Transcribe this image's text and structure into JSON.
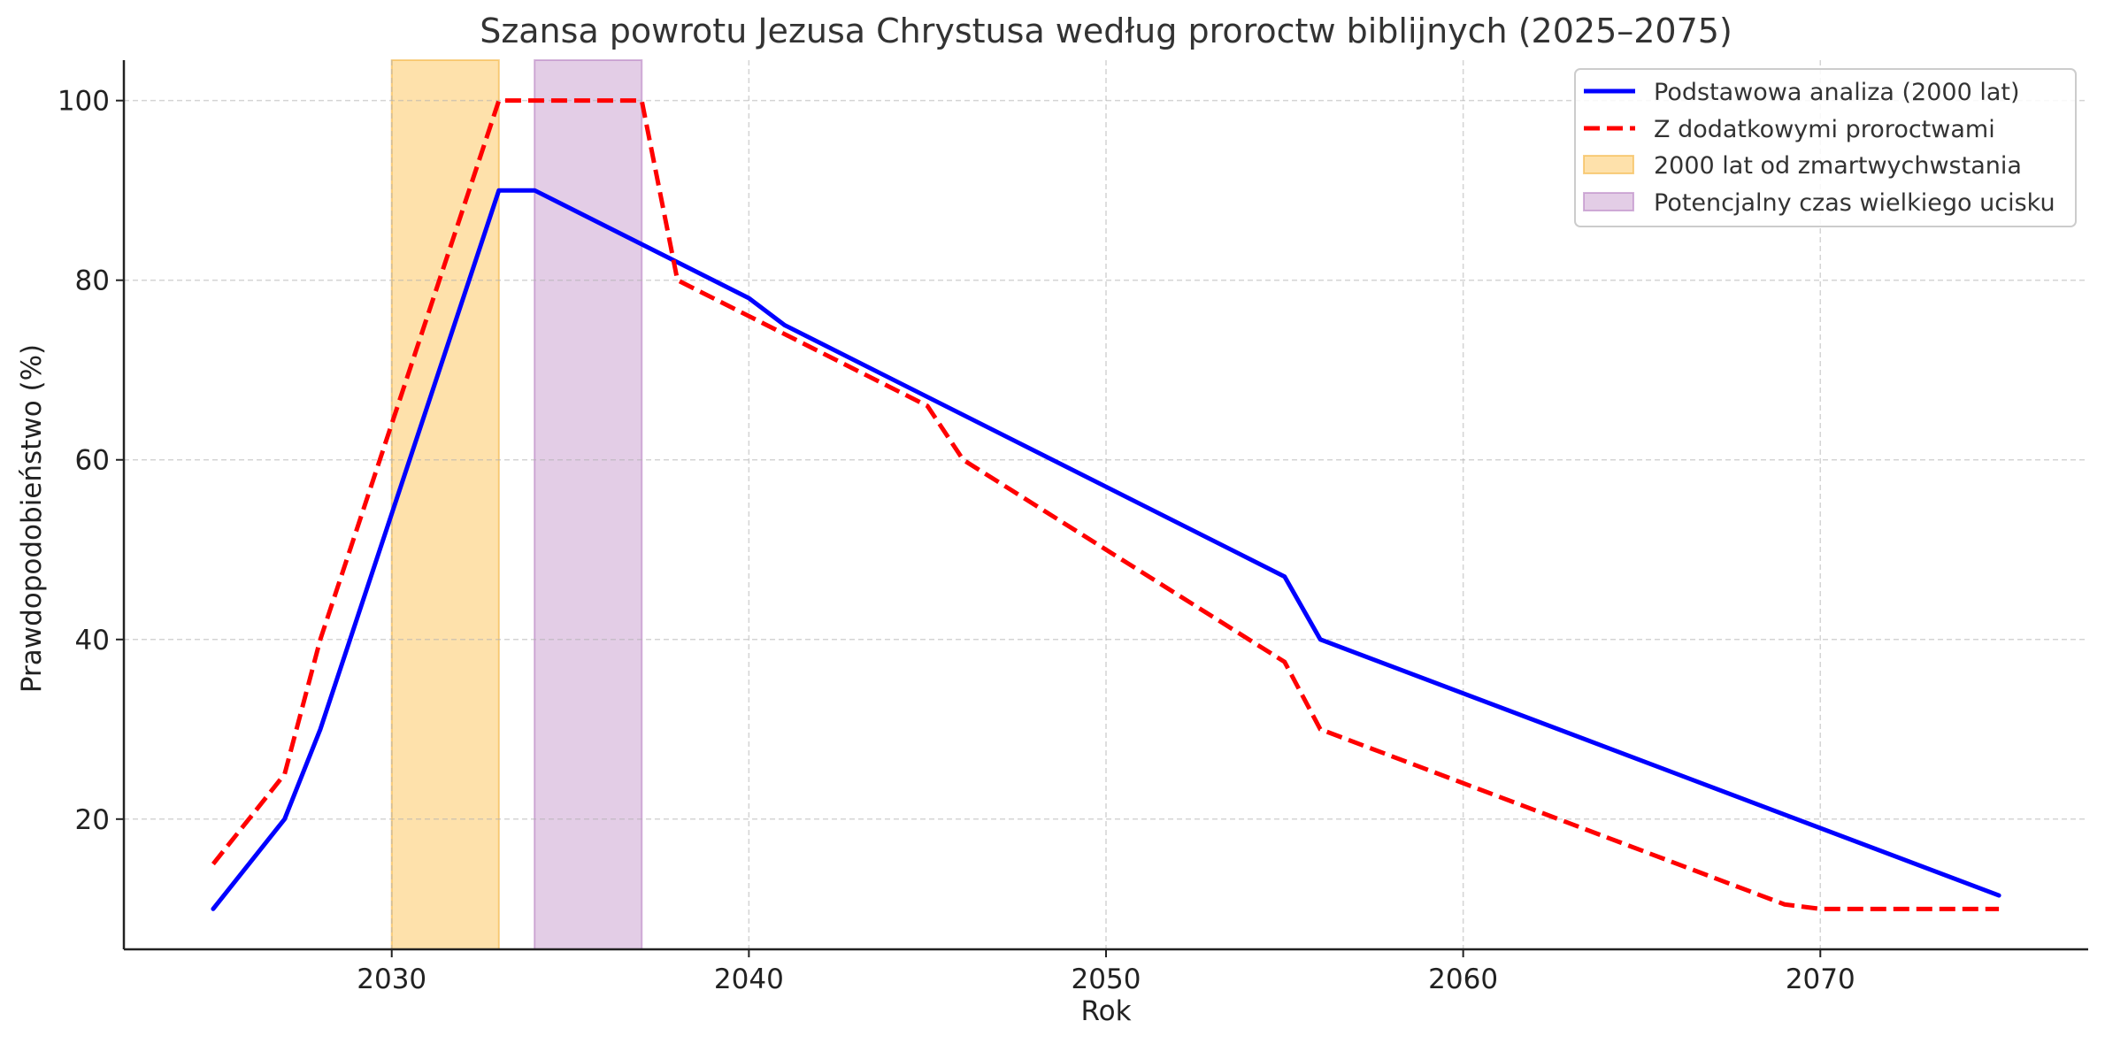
{
  "chart_data": {
    "type": "line",
    "title": "Szansa powrotu Jezusa Chrystusa według proroctw biblijnych (2025–2075)",
    "xlabel": "Rok",
    "ylabel": "Prawdopodobieństwo (%)",
    "xlim": [
      2022.5,
      2077.5
    ],
    "ylim": [
      5.5,
      104.5
    ],
    "xticks": [
      2030,
      2040,
      2050,
      2060,
      2070
    ],
    "yticks": [
      20,
      40,
      60,
      80,
      100
    ],
    "grid": true,
    "legend_position": "top-right",
    "series": [
      {
        "name": "Podstawowa analiza (2000 lat)",
        "color": "#0000ff",
        "style": "solid",
        "points": [
          [
            2025,
            10
          ],
          [
            2027,
            20
          ],
          [
            2028,
            30
          ],
          [
            2033,
            90
          ],
          [
            2034,
            90
          ],
          [
            2040,
            78
          ],
          [
            2041,
            75
          ],
          [
            2055,
            47
          ],
          [
            2056,
            40
          ],
          [
            2075,
            11.5
          ]
        ]
      },
      {
        "name": "Z dodatkowymi proroctwami",
        "color": "#ff0000",
        "style": "dashed",
        "points": [
          [
            2025,
            15
          ],
          [
            2027,
            25
          ],
          [
            2028,
            40
          ],
          [
            2033,
            100
          ],
          [
            2037,
            100
          ],
          [
            2038,
            80
          ],
          [
            2045,
            66
          ],
          [
            2046,
            60
          ],
          [
            2055,
            37.5
          ],
          [
            2056,
            30
          ],
          [
            2069,
            10.5
          ],
          [
            2070,
            10
          ],
          [
            2075,
            10
          ]
        ]
      }
    ],
    "bands": [
      {
        "name": "2000 lat od zmartwychwstania",
        "from": 2030,
        "to": 2033,
        "color": "#fdc358",
        "edge_color": "#f3b441"
      },
      {
        "name": "Potencjalny czas wielkiego ucisku",
        "from": 2034,
        "to": 2037,
        "color": "#c79bcd",
        "edge_color": "#b882c3"
      }
    ]
  }
}
